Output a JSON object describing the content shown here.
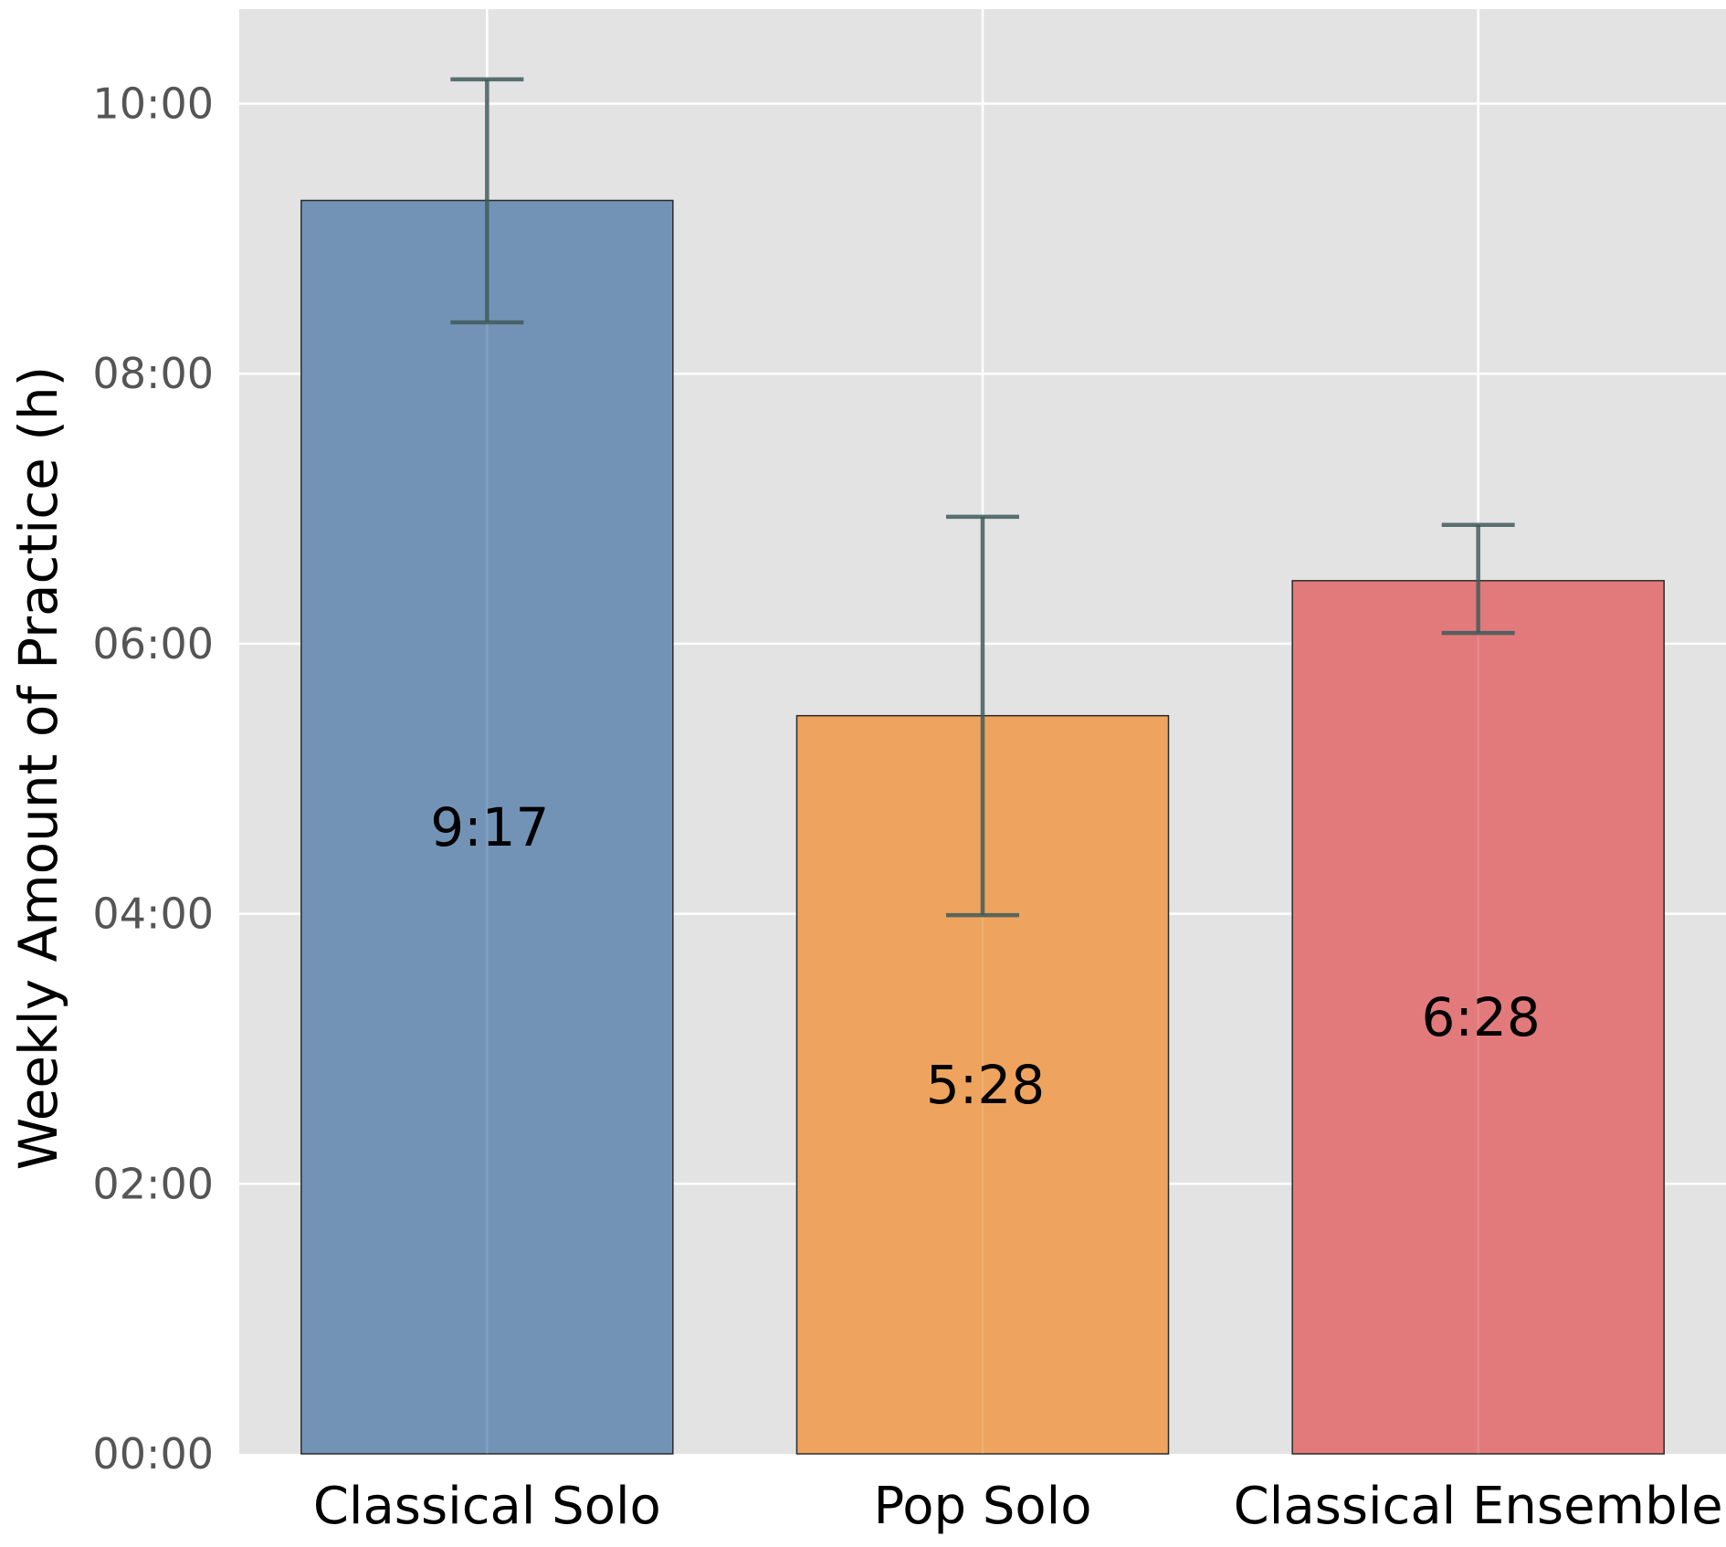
{
  "chart_data": {
    "type": "bar",
    "title": "",
    "xlabel": "",
    "ylabel": "Weekly Amount of Practice (h)",
    "categories": [
      "Classical Solo",
      "Pop Solo",
      "Classical Ensemble"
    ],
    "values": [
      9.283,
      5.467,
      6.467
    ],
    "value_labels": [
      "9:17",
      "5:28",
      "6:28"
    ],
    "error_low": [
      8.38,
      3.99,
      6.08
    ],
    "error_high": [
      10.18,
      6.94,
      6.88
    ],
    "colors": [
      "#7393b6",
      "#eea45e",
      "#e27a7b"
    ],
    "error_bar_color": "#3f5a5a",
    "ylim": [
      0,
      10.7
    ],
    "yticks": [
      0,
      2,
      4,
      6,
      8,
      10
    ],
    "ytick_labels": [
      "00:00",
      "02:00",
      "04:00",
      "06:00",
      "08:00",
      "10:00"
    ],
    "grid": true,
    "background": "#e3e3e3",
    "legend": "none"
  }
}
